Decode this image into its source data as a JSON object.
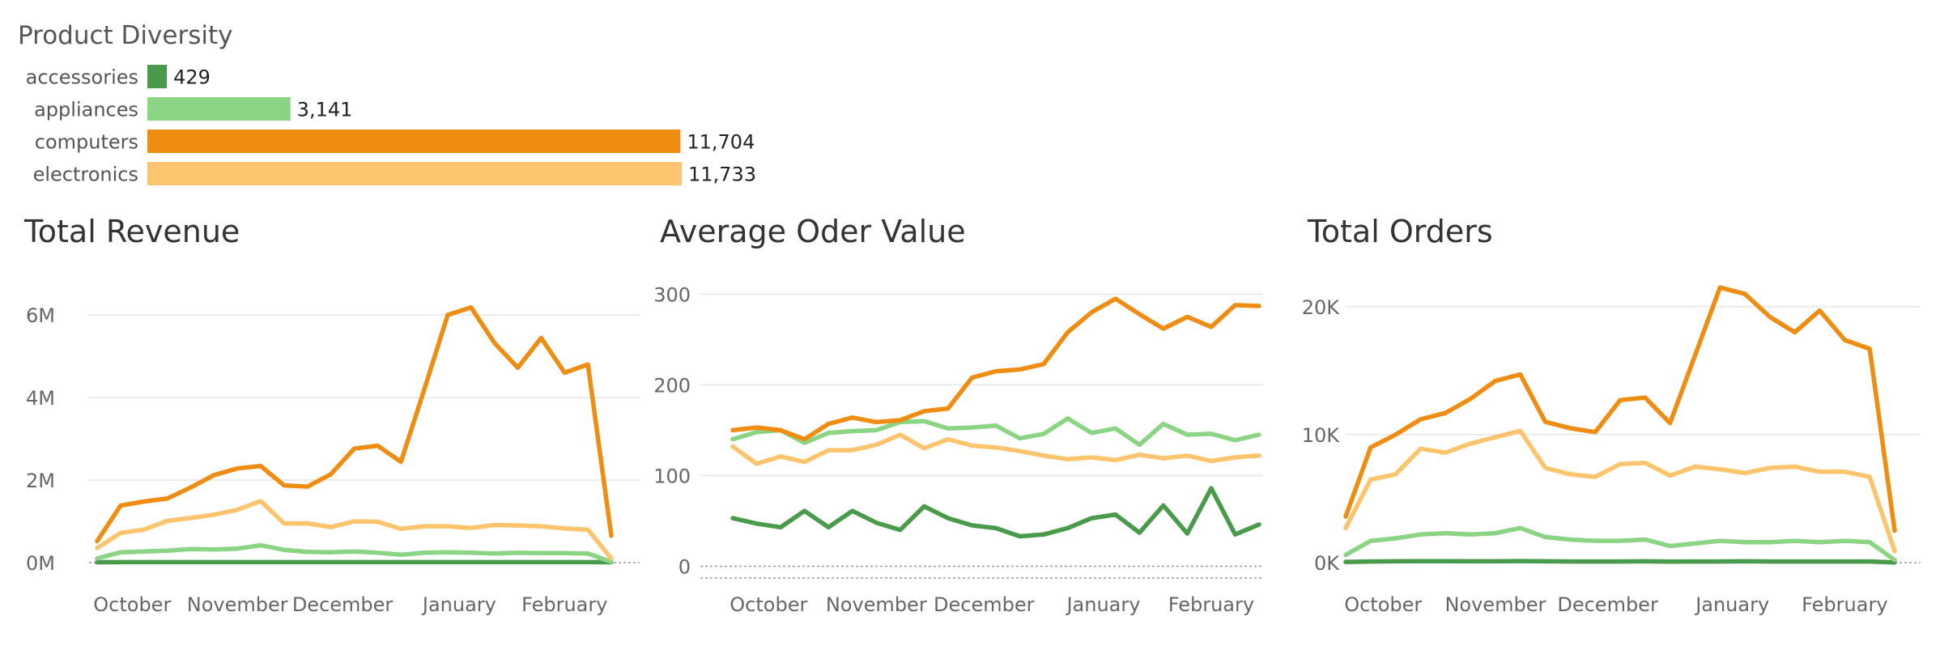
{
  "colors": {
    "accessories": "#4a9a4c",
    "appliances": "#8ad484",
    "computers": "#ef8c12",
    "electronics": "#fcc46c",
    "gridline": "#e6e6e6",
    "axis_text": "#666666",
    "title_text": "#333333"
  },
  "chart_data": [
    {
      "id": "diversity",
      "type": "bar",
      "title": "Product Diversity",
      "orientation": "horizontal",
      "categories": [
        "accessories",
        "appliances",
        "computers",
        "electronics"
      ],
      "values": [
        429,
        3141,
        11704,
        11733
      ],
      "value_labels": [
        "429",
        "3,141",
        "11,704",
        "11,733"
      ],
      "colors": [
        "#4a9a4c",
        "#8ad484",
        "#ef8c12",
        "#fcc46c"
      ]
    },
    {
      "id": "revenue",
      "type": "line",
      "title": "Total Revenue",
      "x_labels": [
        "October",
        "November",
        "December",
        "January",
        "February"
      ],
      "x_label_positions": [
        1.5,
        6,
        10.5,
        15.5,
        20
      ],
      "y_ticks": [
        0,
        2000000,
        4000000,
        6000000
      ],
      "y_tick_labels": [
        "0M",
        "2M",
        "4M",
        "6M"
      ],
      "ylim": [
        0,
        6450000
      ],
      "series": [
        {
          "name": "computers",
          "color": "#ef8c12",
          "values": [
            520000,
            1380000,
            1480000,
            1550000,
            1820000,
            2120000,
            2280000,
            2340000,
            1870000,
            1840000,
            2140000,
            2760000,
            2830000,
            2440000,
            4200000,
            6000000,
            6180000,
            5320000,
            4720000,
            5440000,
            4600000,
            4800000,
            650000
          ]
        },
        {
          "name": "electronics",
          "color": "#fcc46c",
          "values": [
            350000,
            720000,
            800000,
            1010000,
            1080000,
            1160000,
            1280000,
            1490000,
            950000,
            950000,
            860000,
            1000000,
            990000,
            820000,
            880000,
            880000,
            840000,
            910000,
            900000,
            880000,
            830000,
            800000,
            100000
          ]
        },
        {
          "name": "appliances",
          "color": "#8ad484",
          "values": [
            100000,
            250000,
            270000,
            290000,
            330000,
            320000,
            340000,
            420000,
            310000,
            260000,
            250000,
            270000,
            240000,
            190000,
            240000,
            250000,
            240000,
            220000,
            240000,
            230000,
            230000,
            220000,
            20000
          ]
        },
        {
          "name": "accessories",
          "color": "#4a9a4c",
          "values": [
            10000,
            12000,
            12000,
            12000,
            12000,
            12000,
            12000,
            12000,
            12000,
            12000,
            12000,
            12000,
            12000,
            12000,
            12000,
            12000,
            12000,
            12000,
            12000,
            12000,
            12000,
            12000,
            10000
          ]
        }
      ]
    },
    {
      "id": "aov",
      "type": "line",
      "title": "Average Oder Value",
      "x_labels": [
        "October",
        "November",
        "December",
        "January",
        "February"
      ],
      "x_label_positions": [
        1.5,
        6,
        10.5,
        15.5,
        20
      ],
      "y_ticks": [
        0,
        100,
        200,
        300
      ],
      "y_tick_labels": [
        "0",
        "100",
        "200",
        "300"
      ],
      "ylim": [
        -13,
        312
      ],
      "series": [
        {
          "name": "computers",
          "color": "#ef8c12",
          "values": [
            150,
            153,
            150,
            140,
            157,
            164,
            159,
            161,
            171,
            174,
            208,
            215,
            217,
            223,
            258,
            280,
            295,
            278,
            262,
            275,
            264,
            288,
            287
          ]
        },
        {
          "name": "electronics",
          "color": "#fcc46c",
          "values": [
            132,
            113,
            121,
            115,
            128,
            128,
            134,
            145,
            130,
            140,
            133,
            131,
            127,
            122,
            118,
            120,
            117,
            123,
            119,
            122,
            116,
            120,
            122
          ]
        },
        {
          "name": "appliances",
          "color": "#8ad484",
          "values": [
            140,
            148,
            150,
            136,
            147,
            149,
            150,
            159,
            160,
            152,
            153,
            155,
            141,
            146,
            163,
            147,
            152,
            134,
            157,
            145,
            146,
            139,
            145
          ]
        },
        {
          "name": "accessories",
          "color": "#4a9a4c",
          "values": [
            53,
            47,
            43,
            61,
            43,
            61,
            48,
            40,
            66,
            53,
            45,
            42,
            33,
            35,
            42,
            53,
            57,
            37,
            67,
            36,
            86,
            35,
            46
          ]
        }
      ]
    },
    {
      "id": "orders",
      "type": "line",
      "title": "Total Orders",
      "x_labels": [
        "October",
        "November",
        "December",
        "January",
        "February"
      ],
      "x_label_positions": [
        1.5,
        6,
        10.5,
        15.5,
        20
      ],
      "y_ticks": [
        0,
        10000,
        20000
      ],
      "y_tick_labels": [
        "0K",
        "10K",
        "20K"
      ],
      "ylim": [
        0,
        21700
      ],
      "series": [
        {
          "name": "computers",
          "color": "#ef8c12",
          "values": [
            3600,
            9000,
            10000,
            11200,
            11700,
            12800,
            14200,
            14700,
            11000,
            10500,
            10200,
            12700,
            12900,
            10900,
            16200,
            21500,
            21000,
            19200,
            18000,
            19700,
            17400,
            16700,
            2500
          ]
        },
        {
          "name": "electronics",
          "color": "#fcc46c",
          "values": [
            2700,
            6500,
            6900,
            8900,
            8600,
            9300,
            9800,
            10300,
            7400,
            6900,
            6700,
            7700,
            7800,
            6800,
            7500,
            7300,
            7000,
            7400,
            7500,
            7100,
            7100,
            6700,
            900
          ]
        },
        {
          "name": "appliances",
          "color": "#8ad484",
          "values": [
            600,
            1700,
            1900,
            2200,
            2300,
            2200,
            2300,
            2700,
            2000,
            1800,
            1700,
            1700,
            1800,
            1300,
            1500,
            1700,
            1600,
            1600,
            1700,
            1600,
            1700,
            1600,
            200
          ]
        },
        {
          "name": "accessories",
          "color": "#4a9a4c",
          "values": [
            60,
            90,
            100,
            110,
            110,
            100,
            100,
            120,
            100,
            90,
            90,
            90,
            100,
            80,
            90,
            90,
            100,
            90,
            90,
            90,
            90,
            90,
            20
          ]
        }
      ]
    }
  ]
}
